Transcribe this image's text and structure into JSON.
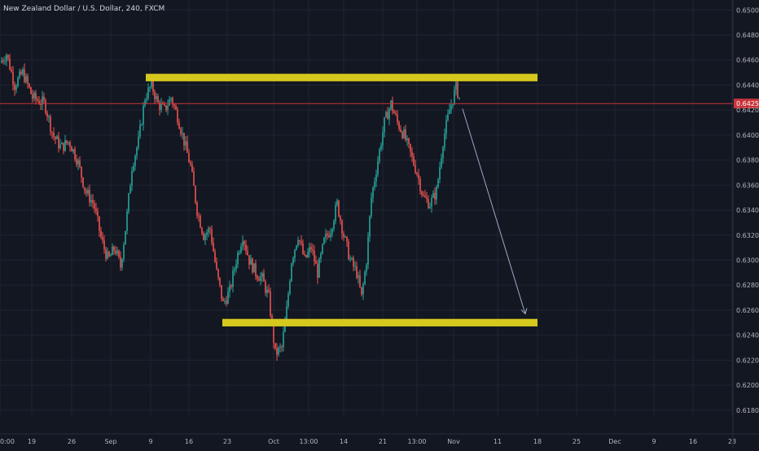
{
  "symbol_title": "New Zealand Dollar / U.S. Dollar, 240, FXCM",
  "colors": {
    "background": "#131722",
    "grid": "#1f2433",
    "up": "#26a69a",
    "down": "#ef5350",
    "zone": "#d6c81c",
    "price_line": "#c9343a",
    "arrow": "#9aa9c4",
    "axis_text": "#b2b5be"
  },
  "current_price_label": "0.64252",
  "chart_data": {
    "type": "candlestick",
    "title": "New Zealand Dollar / U.S. Dollar, 240, FXCM",
    "ylim": [
      0.6176,
      0.6508
    ],
    "y_tick_labels": [
      "0.65000",
      "0.64800",
      "0.64600",
      "0.64400",
      "0.64200",
      "0.64000",
      "0.63800",
      "0.63600",
      "0.63400",
      "0.63200",
      "0.63000",
      "0.62800",
      "0.62600",
      "0.62400",
      "0.62200",
      "0.62000",
      "0.61800"
    ],
    "y_tick_values": [
      0.65,
      0.648,
      0.646,
      0.644,
      0.642,
      0.64,
      0.638,
      0.636,
      0.634,
      0.632,
      0.63,
      0.628,
      0.626,
      0.624,
      0.622,
      0.62,
      0.618
    ],
    "x_tick_labels": [
      "0:00",
      "19",
      "26",
      "Sep",
      "9",
      "16",
      "23",
      "Oct",
      "13:00",
      "14",
      "21",
      "13:00",
      "Nov",
      "11",
      "18",
      "25",
      "Dec",
      "9",
      "16",
      "23"
    ],
    "x_tick_index": [
      0,
      39,
      88,
      136,
      185,
      232,
      279,
      336,
      379,
      422,
      470,
      512,
      557,
      611,
      660,
      708,
      755,
      803,
      851,
      899
    ],
    "last_price": 0.64252,
    "resistance_zone": {
      "low": 0.6443,
      "high": 0.6449,
      "from": "9",
      "to": "18"
    },
    "support_zone": {
      "low": 0.6247,
      "high": 0.6253,
      "from": "23",
      "to": "18"
    },
    "projection_arrow": {
      "from": 0.6421,
      "to": 0.6257
    },
    "price_path": [
      [
        0,
        0.6458
      ],
      [
        8,
        0.6465
      ],
      [
        18,
        0.644
      ],
      [
        28,
        0.645
      ],
      [
        40,
        0.643
      ],
      [
        55,
        0.6425
      ],
      [
        65,
        0.64
      ],
      [
        75,
        0.639
      ],
      [
        85,
        0.6395
      ],
      [
        95,
        0.638
      ],
      [
        105,
        0.6355
      ],
      [
        115,
        0.6345
      ],
      [
        125,
        0.6315
      ],
      [
        133,
        0.63
      ],
      [
        141,
        0.631
      ],
      [
        148,
        0.6295
      ],
      [
        155,
        0.633
      ],
      [
        162,
        0.6375
      ],
      [
        170,
        0.6395
      ],
      [
        178,
        0.643
      ],
      [
        186,
        0.644
      ],
      [
        194,
        0.6425
      ],
      [
        202,
        0.642
      ],
      [
        210,
        0.643
      ],
      [
        218,
        0.6415
      ],
      [
        226,
        0.6395
      ],
      [
        234,
        0.6375
      ],
      [
        242,
        0.634
      ],
      [
        250,
        0.632
      ],
      [
        258,
        0.6325
      ],
      [
        266,
        0.629
      ],
      [
        274,
        0.6265
      ],
      [
        282,
        0.6275
      ],
      [
        290,
        0.63
      ],
      [
        298,
        0.632
      ],
      [
        306,
        0.63
      ],
      [
        314,
        0.629
      ],
      [
        322,
        0.6285
      ],
      [
        330,
        0.627
      ],
      [
        338,
        0.6225
      ],
      [
        346,
        0.623
      ],
      [
        352,
        0.626
      ],
      [
        358,
        0.63
      ],
      [
        366,
        0.632
      ],
      [
        374,
        0.63
      ],
      [
        382,
        0.631
      ],
      [
        390,
        0.629
      ],
      [
        398,
        0.6315
      ],
      [
        406,
        0.6325
      ],
      [
        414,
        0.6345
      ],
      [
        422,
        0.632
      ],
      [
        430,
        0.63
      ],
      [
        438,
        0.629
      ],
      [
        444,
        0.627
      ],
      [
        450,
        0.63
      ],
      [
        456,
        0.635
      ],
      [
        464,
        0.638
      ],
      [
        472,
        0.641
      ],
      [
        480,
        0.6425
      ],
      [
        488,
        0.641
      ],
      [
        496,
        0.64
      ],
      [
        504,
        0.6385
      ],
      [
        512,
        0.637
      ],
      [
        520,
        0.635
      ],
      [
        528,
        0.6345
      ],
      [
        536,
        0.6355
      ],
      [
        544,
        0.6395
      ],
      [
        552,
        0.642
      ],
      [
        560,
        0.6438
      ],
      [
        564,
        0.643
      ]
    ]
  }
}
